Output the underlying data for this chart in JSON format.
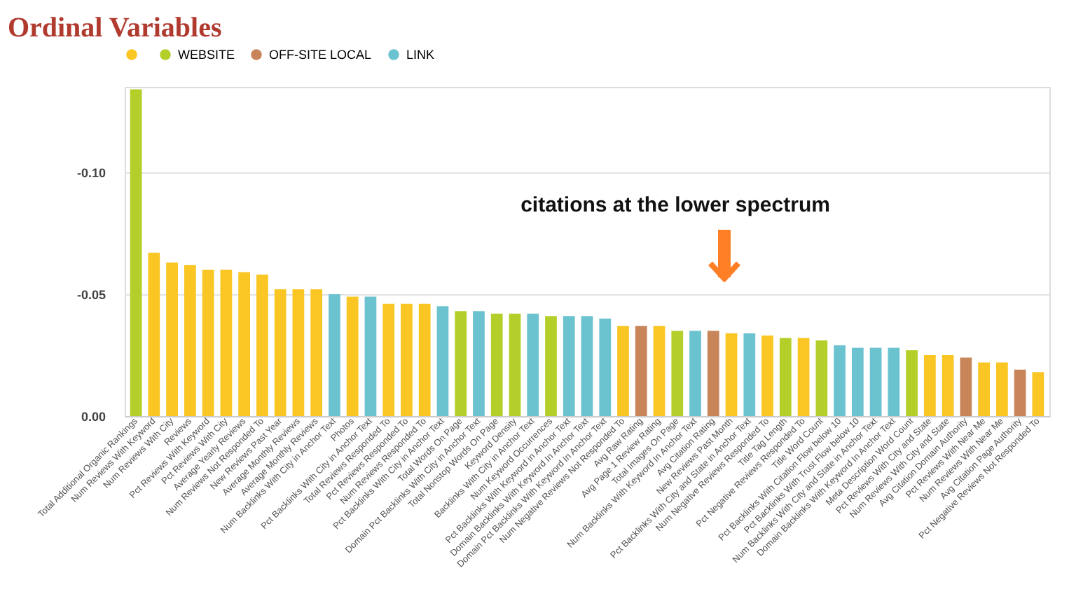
{
  "chart_data": {
    "type": "bar",
    "title": "Ordinal Variables",
    "categories": [
      "Total Additional Organic Rankings",
      "Num Reviews With Keyword",
      "Num Reviews With City",
      "Reviews",
      "Pct Reviews With Keyword",
      "Pct Reviews With City",
      "Average Yearly Reviews",
      "Num Reviews Not Responded To",
      "New Reviews Past Year",
      "Average Monthly Reviews",
      "Average Monthly Reviews",
      "Num Backlinks With City in Anchor Text",
      "Photos",
      "Pct Backlinks With City in Anchor Text",
      "Total Reviews Responded To",
      "Pct Reviews Responded To",
      "Num Reviews Responded To",
      "Pct Backlinks With City in Anchor Text",
      "Total Words On Page",
      "Domain Pct Backlinks With City in Anchor Text",
      "Total Nonstop Words On Page",
      "Keyword Density",
      "Backlinks With City in Anchor Text",
      "Num Keyword Occurrences",
      "Pct Backlinks With Keyword in Anchor Text",
      "Domain Backlinks With Keyword In Anchor Text",
      "Domain Pct Backlinks With Keyword In Anchor Text",
      "Num Negative Reviews Not Responded To",
      "Avg Raw Rating",
      "Avg Page 1 Review Rating",
      "Total Images On Page",
      "Num Backlinks With Keyword In Anchor Text",
      "Avg Citation Rating",
      "New Reviews Past Month",
      "Pct Backlinks With City and State in Anchor Text",
      "Num Negative Reviews Responded To",
      "Title Tag Length",
      "Pct Negative Reviews Responded To",
      "Title Word Count",
      "Pct Backlinks With Citation Flow below 10",
      "Pct Backlinks With Trust Flow below 10",
      "Num Backlinks With City and State in Anchor Text",
      "Domain Backlinks With Keyword In Anchor Text",
      "Meta Description Word Count",
      "Pct Reviews With City and State",
      "Num Reviews With City and State",
      "Avg Citation Domain Authority",
      "Pct Reviews With Near Me",
      "Num Reviews With Near Me",
      "Avg Citation Page Authority",
      "Pct Negative Reviews Not Responded To"
    ],
    "series": [
      {
        "color": "#f9c623",
        "values": [
          null,
          -0.067,
          -0.063,
          -0.062,
          -0.06,
          -0.06,
          -0.059,
          -0.058,
          -0.052,
          -0.052,
          -0.052,
          null,
          -0.049,
          null,
          -0.046,
          -0.046,
          -0.046,
          null,
          null,
          null,
          null,
          null,
          null,
          null,
          null,
          null,
          null,
          -0.037,
          null,
          -0.037,
          null,
          null,
          null,
          -0.034,
          null,
          -0.033,
          null,
          -0.032,
          null,
          null,
          null,
          null,
          null,
          null,
          -0.025,
          -0.025,
          null,
          -0.022,
          -0.022,
          null,
          -0.018
        ]
      },
      {
        "name": "WEBSITE",
        "color": "#b5cf2a",
        "values": [
          -0.134,
          null,
          null,
          null,
          null,
          null,
          null,
          null,
          null,
          null,
          null,
          null,
          null,
          null,
          null,
          null,
          null,
          null,
          -0.043,
          null,
          -0.042,
          -0.042,
          null,
          -0.041,
          null,
          null,
          null,
          null,
          null,
          null,
          -0.035,
          null,
          null,
          null,
          null,
          null,
          -0.032,
          null,
          -0.031,
          null,
          null,
          null,
          null,
          -0.027,
          null,
          null,
          null,
          null,
          null,
          null,
          null
        ]
      },
      {
        "name": "OFF-SITE LOCAL",
        "color": "#c8855a",
        "values": [
          null,
          null,
          null,
          null,
          null,
          null,
          null,
          null,
          null,
          null,
          null,
          null,
          null,
          null,
          null,
          null,
          null,
          null,
          null,
          null,
          null,
          null,
          null,
          null,
          null,
          null,
          null,
          null,
          -0.037,
          null,
          null,
          null,
          -0.035,
          null,
          null,
          null,
          null,
          null,
          null,
          null,
          null,
          null,
          null,
          null,
          null,
          null,
          -0.024,
          null,
          null,
          -0.019,
          null
        ]
      },
      {
        "name": "LINK",
        "color": "#6cc3d0",
        "values": [
          null,
          null,
          null,
          null,
          null,
          null,
          null,
          null,
          null,
          null,
          null,
          -0.05,
          null,
          -0.049,
          null,
          null,
          null,
          -0.045,
          null,
          -0.043,
          null,
          null,
          -0.042,
          null,
          -0.041,
          -0.041,
          -0.04,
          null,
          null,
          null,
          null,
          -0.035,
          null,
          null,
          -0.034,
          null,
          null,
          null,
          null,
          -0.029,
          -0.028,
          -0.028,
          -0.028,
          null,
          null,
          null,
          null,
          null,
          null,
          null,
          null
        ]
      }
    ],
    "ylim": [
      0,
      -0.135
    ],
    "yticks": [
      {
        "value": 0,
        "label": "0.00"
      },
      {
        "value": -0.05,
        "label": "-0.05"
      },
      {
        "value": -0.1,
        "label": "-0.10"
      }
    ],
    "grid": "y",
    "legend": "top",
    "annotations": [
      "citations at the lower spectrum"
    ]
  }
}
